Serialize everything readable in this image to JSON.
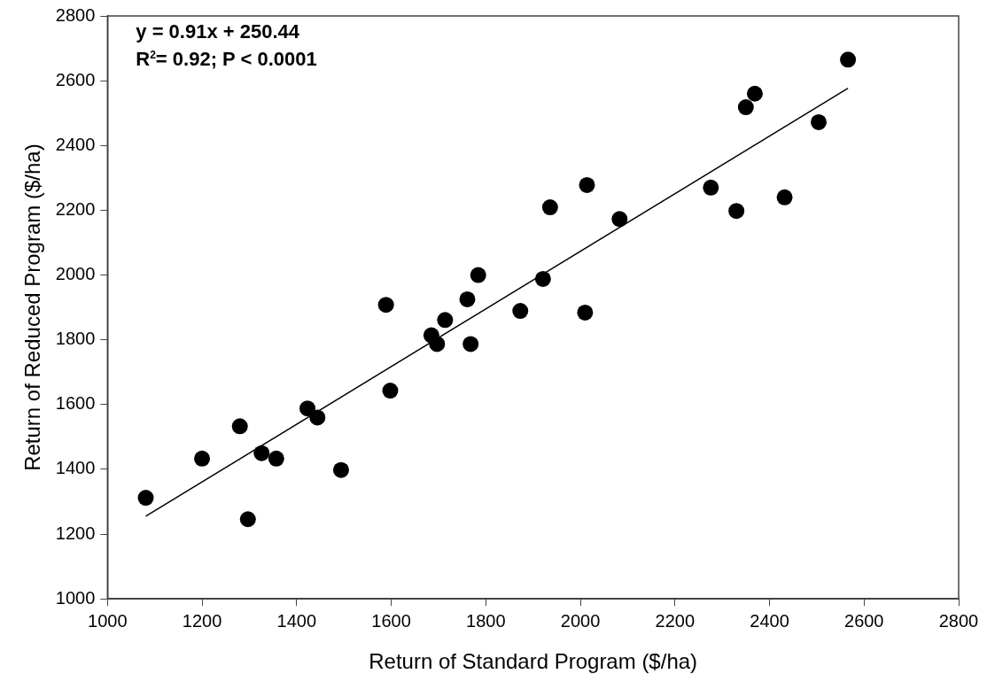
{
  "chart_data": {
    "type": "scatter",
    "xlabel": "Return of Standard Program ($/ha)",
    "ylabel": "Return of Reduced Program ($/ha)",
    "annotations": [
      "y = 0.91x + 250.44",
      "R$^{2}$= 0.92; P < 0.0001"
    ],
    "xlim": [
      1000,
      2800
    ],
    "ylim": [
      1000,
      2800
    ],
    "xticks": [
      1000,
      1200,
      1400,
      1600,
      1800,
      2000,
      2200,
      2400,
      2600,
      2800
    ],
    "yticks": [
      1000,
      1200,
      1400,
      1600,
      1800,
      2000,
      2200,
      2400,
      2600,
      2800
    ],
    "grid": false,
    "legend": false,
    "series": [
      {
        "marker": "circle",
        "color": "#000000",
        "x": [
          1081,
          1200,
          1280,
          1297,
          1326,
          1357,
          1423,
          1444,
          1494,
          1589,
          1598,
          1685,
          1697,
          1714,
          1761,
          1768,
          1784,
          1873,
          1921,
          1936,
          2010,
          2014,
          2083,
          2276,
          2330,
          2350,
          2369,
          2432,
          2504,
          2566
        ],
        "values": [
          1312,
          1433,
          1533,
          1246,
          1450,
          1433,
          1588,
          1560,
          1398,
          1908,
          1643,
          1814,
          1787,
          1861,
          1925,
          1787,
          2000,
          1889,
          1988,
          2209,
          1884,
          2278,
          2173,
          2270,
          2198,
          2518,
          2560,
          2240,
          2472,
          2665
        ]
      },
      {
        "type": "line",
        "marker": "none",
        "line_style": "solid",
        "color": "#000000",
        "x": [
          1081,
          2566
        ],
        "values": [
          1255,
          2577
        ]
      }
    ]
  }
}
